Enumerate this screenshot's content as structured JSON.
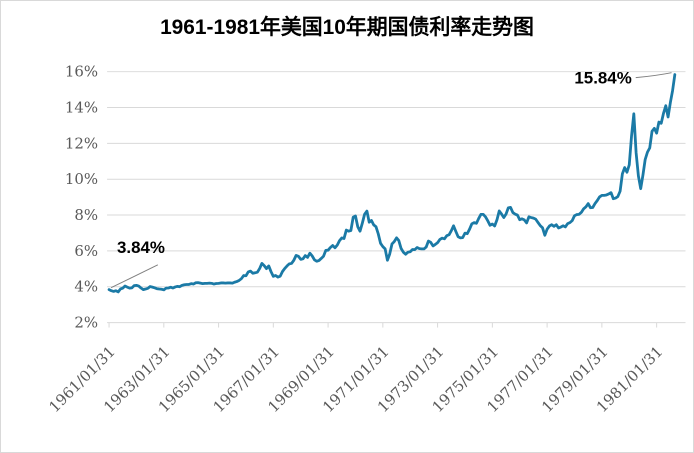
{
  "title": "1961-1981年美国10年期国债利率走势图",
  "annotations": {
    "start": {
      "label": "3.84%"
    },
    "end": {
      "label": "15.84%"
    }
  },
  "colors": {
    "line": "#1b7aa6",
    "grid": "#d9d9d9",
    "axis_text": "#595959",
    "title_text": "#000000",
    "annotation_text": "#000000",
    "leader_line": "#808080",
    "background": "#ffffff",
    "frame_border": "#d9d9d9"
  },
  "chart_data": {
    "type": "line",
    "title": "1961-1981年美国10年期国债利率走势图",
    "xlabel": "",
    "ylabel": "",
    "x_unit": "monthly month-end dates from 1961/01/31 to 1981/09/30",
    "x_tick_labels": [
      "1961/01/31",
      "1963/01/31",
      "1965/01/31",
      "1967/01/31",
      "1969/01/31",
      "1971/01/31",
      "1973/01/31",
      "1975/01/31",
      "1977/01/31",
      "1979/01/31",
      "1981/01/31"
    ],
    "x_tick_month_offsets": [
      0,
      24,
      48,
      72,
      96,
      120,
      144,
      168,
      192,
      216,
      240
    ],
    "y_tick_values": [
      2,
      4,
      6,
      8,
      10,
      12,
      14,
      16
    ],
    "y_tick_labels": [
      "2%",
      "4%",
      "6%",
      "8%",
      "10%",
      "12%",
      "14%",
      "16%"
    ],
    "ylim": [
      2,
      16
    ],
    "grid": "horizontal",
    "legend": "none",
    "first_point_label": "3.84%",
    "last_point_label": "15.84%",
    "values": [
      3.84,
      3.78,
      3.74,
      3.78,
      3.71,
      3.88,
      3.92,
      4.04,
      3.98,
      3.92,
      3.94,
      4.06,
      4.08,
      4.04,
      3.93,
      3.84,
      3.87,
      3.91,
      4.01,
      3.98,
      3.94,
      3.89,
      3.87,
      3.86,
      3.83,
      3.92,
      3.93,
      3.97,
      3.93,
      3.99,
      4.02,
      4.0,
      4.08,
      4.11,
      4.12,
      4.13,
      4.17,
      4.15,
      4.22,
      4.23,
      4.2,
      4.17,
      4.19,
      4.19,
      4.2,
      4.19,
      4.15,
      4.18,
      4.19,
      4.21,
      4.21,
      4.2,
      4.21,
      4.21,
      4.2,
      4.25,
      4.29,
      4.35,
      4.45,
      4.62,
      4.61,
      4.83,
      4.87,
      4.75,
      4.78,
      4.81,
      5.02,
      5.3,
      5.18,
      5.01,
      5.16,
      4.84,
      4.58,
      4.63,
      4.54,
      4.59,
      4.85,
      5.02,
      5.16,
      5.28,
      5.3,
      5.48,
      5.75,
      5.7,
      5.53,
      5.56,
      5.74,
      5.64,
      5.87,
      5.72,
      5.5,
      5.42,
      5.46,
      5.58,
      5.7,
      6.03,
      6.04,
      6.19,
      6.3,
      6.17,
      6.32,
      6.57,
      6.72,
      6.69,
      7.16,
      7.1,
      7.14,
      7.88,
      7.95,
      7.35,
      7.1,
      7.55,
      8.05,
      8.22,
      7.6,
      7.7,
      7.45,
      7.35,
      6.95,
      6.42,
      6.24,
      6.11,
      5.48,
      5.83,
      6.39,
      6.52,
      6.73,
      6.58,
      6.14,
      5.93,
      5.81,
      5.93,
      5.95,
      6.08,
      6.07,
      6.19,
      6.13,
      6.11,
      6.11,
      6.21,
      6.55,
      6.48,
      6.28,
      6.36,
      6.46,
      6.64,
      6.71,
      6.67,
      6.85,
      6.9,
      7.13,
      7.4,
      7.09,
      6.79,
      6.73,
      6.74,
      6.99,
      6.96,
      7.21,
      7.51,
      7.58,
      7.54,
      7.81,
      8.04,
      8.04,
      7.9,
      7.68,
      7.43,
      7.5,
      7.39,
      7.73,
      8.23,
      8.06,
      7.86,
      8.06,
      8.4,
      8.43,
      8.14,
      8.05,
      8.0,
      7.74,
      7.79,
      7.73,
      7.56,
      7.9,
      7.86,
      7.83,
      7.77,
      7.59,
      7.41,
      7.29,
      6.87,
      7.21,
      7.39,
      7.46,
      7.37,
      7.46,
      7.28,
      7.33,
      7.4,
      7.34,
      7.52,
      7.58,
      7.69,
      7.96,
      8.03,
      8.04,
      8.15,
      8.35,
      8.46,
      8.64,
      8.41,
      8.42,
      8.64,
      8.81,
      9.01,
      9.1,
      9.1,
      9.12,
      9.18,
      9.25,
      8.91,
      8.95,
      9.03,
      9.33,
      10.3,
      10.65,
      10.39,
      10.8,
      12.41,
      13.65,
      11.47,
      10.18,
      9.47,
      10.25,
      11.1,
      11.51,
      11.75,
      12.68,
      12.84,
      12.57,
      13.19,
      13.12,
      13.68,
      14.1,
      13.47,
      14.28,
      14.94,
      15.84
    ]
  }
}
